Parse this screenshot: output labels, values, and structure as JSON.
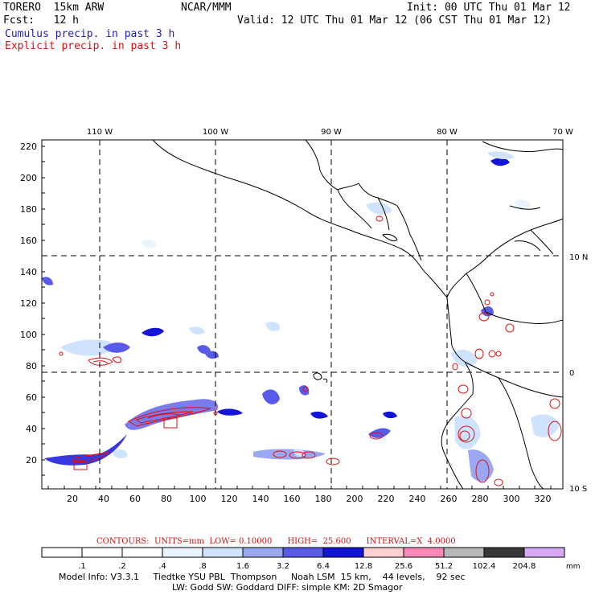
{
  "header": {
    "model": "TORERO  15km ARW",
    "org": "NCAR/MMM",
    "init": "Init: 00 UTC Thu 01 Mar 12",
    "fcst": "Fcst:   12 h",
    "valid": "Valid: 12 UTC Thu 01 Mar 12 (06 CST Thu 01 Mar 12)",
    "field1": "Cumulus precip. in past 3 h",
    "field2": "Explicit precip. in past 3 h"
  },
  "colors": {
    "cumulus_label": "#2020c0",
    "explicit_label": "#e01010",
    "contour": "#e01010",
    "grid": "#000000"
  },
  "map": {
    "lon_labels": [
      "110 W",
      "100 W",
      "90 W",
      "80 W",
      "70 W"
    ],
    "lat_labels": [
      "10 N",
      "0",
      "10 S"
    ],
    "y_ticks": [
      "220",
      "200",
      "180",
      "160",
      "140",
      "120",
      "100",
      "80",
      "60",
      "40",
      "20"
    ],
    "x_ticks": [
      "20",
      "40",
      "60",
      "80",
      "100",
      "120",
      "140",
      "160",
      "180",
      "200",
      "220",
      "240",
      "260",
      "280",
      "300",
      "320"
    ]
  },
  "colorbar": {
    "labels": [
      ".1",
      ".2",
      ".4",
      ".8",
      "1.6",
      "3.2",
      "6.4",
      "12.8",
      "25.6",
      "51.2",
      "102.4",
      "204.8"
    ],
    "unit": "mm",
    "colors": [
      "#ffffff",
      "#ffffff",
      "#ffffff",
      "#eaf4ff",
      "#cfe3ff",
      "#9aa8f4",
      "#5a5ae8",
      "#1414d8",
      "#ffd0d0",
      "#ff88b8",
      "#b8b8b8",
      "#383838",
      "#d8a8f8"
    ]
  },
  "contours_text": "CONTOURS:  UNITS=mm  LOW= 0.10000      HIGH=  25.600      INTERVAL=X  4.0000",
  "footer": {
    "line1": "Model Info: V3.3.1     Tiedtke YSU PBL  Thompson     Noah LSM  15 km,    44 levels,    92 sec",
    "line2": "LW: Godd SW: Goddard DIFF: simple KM: 2D Smagor"
  }
}
